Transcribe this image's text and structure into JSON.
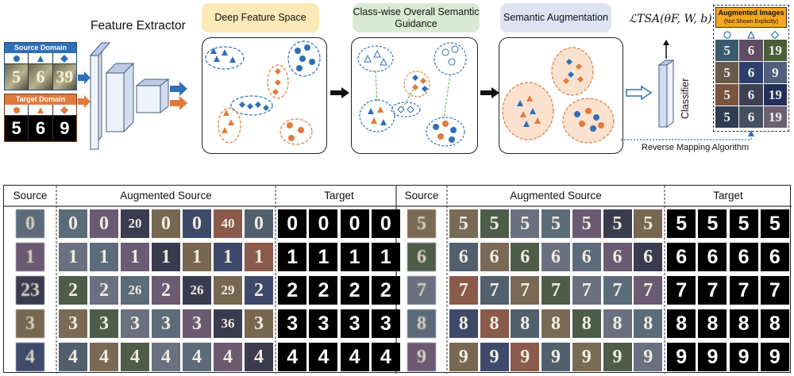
{
  "diagram": {
    "feature_extractor_label": "Feature Extractor",
    "source_domain": {
      "title": "Source Domain",
      "digits": [
        "5",
        "6",
        "39"
      ]
    },
    "target_domain": {
      "title": "Target Domain",
      "digits": [
        "5",
        "6",
        "9"
      ]
    },
    "stage_titles": [
      "Deep Feature Space",
      "Class-wise Overall Semantic Guidance",
      "Semantic Augmentation"
    ],
    "loss_label": "ℒTSA(θF, W, b)",
    "classifier_label": "Classifier",
    "reverse_mapping_label": "Reverse Mapping Algorithm",
    "augmented_images": {
      "title": "Augmented Images",
      "subtitle": "(Not Shown Explicitly)",
      "digits": [
        "5",
        "6",
        "19",
        "5",
        "6",
        "9",
        "5",
        "6",
        "19",
        "5",
        "6",
        "19"
      ]
    },
    "colors": {
      "source_blue": "#2f6fb5",
      "target_orange": "#e07b3c",
      "title_yellow": "#fbe9b7",
      "title_green": "#d9ead3",
      "title_lilac": "#dde3f2",
      "aug_box_orange": "#f5a623"
    }
  },
  "table": {
    "left": {
      "headers": [
        "Source",
        "Augmented Source",
        "Target"
      ],
      "rows": [
        {
          "source": "0",
          "augmented": [
            "0",
            "0",
            "20",
            "0",
            "0",
            "40",
            "0"
          ],
          "target": [
            "0",
            "0",
            "0",
            "0"
          ]
        },
        {
          "source": "1",
          "augmented": [
            "1",
            "1",
            "1",
            "1",
            "1",
            "1",
            "1"
          ],
          "target": [
            "1",
            "1",
            "1",
            "1"
          ]
        },
        {
          "source": "23",
          "augmented": [
            "2",
            "2",
            "26",
            "2",
            "26",
            "29",
            "2"
          ],
          "target": [
            "2",
            "2",
            "2",
            "2"
          ]
        },
        {
          "source": "3",
          "augmented": [
            "3",
            "3",
            "3",
            "3",
            "3",
            "36",
            "3"
          ],
          "target": [
            "3",
            "3",
            "3",
            "3"
          ]
        },
        {
          "source": "4",
          "augmented": [
            "4",
            "4",
            "4",
            "4",
            "4",
            "4",
            "4"
          ],
          "target": [
            "4",
            "4",
            "4",
            "4"
          ]
        }
      ]
    },
    "right": {
      "headers": [
        "Source",
        "Augmented Source",
        "Target"
      ],
      "rows": [
        {
          "source": "5",
          "augmented": [
            "5",
            "5",
            "5",
            "5",
            "5",
            "5",
            "5"
          ],
          "target": [
            "5",
            "5",
            "5",
            "5"
          ]
        },
        {
          "source": "6",
          "augmented": [
            "6",
            "6",
            "6",
            "6",
            "6",
            "6",
            "6"
          ],
          "target": [
            "6",
            "6",
            "6",
            "6"
          ]
        },
        {
          "source": "7",
          "augmented": [
            "7",
            "7",
            "7",
            "7",
            "7",
            "7",
            "7"
          ],
          "target": [
            "7",
            "7",
            "7",
            "7"
          ]
        },
        {
          "source": "8",
          "augmented": [
            "8",
            "8",
            "8",
            "8",
            "8",
            "8",
            "8"
          ],
          "target": [
            "8",
            "8",
            "8",
            "8"
          ]
        },
        {
          "source": "9",
          "augmented": [
            "9",
            "9",
            "9",
            "9",
            "9",
            "9",
            "9"
          ],
          "target": [
            "9",
            "9",
            "9",
            "9"
          ]
        }
      ]
    }
  }
}
